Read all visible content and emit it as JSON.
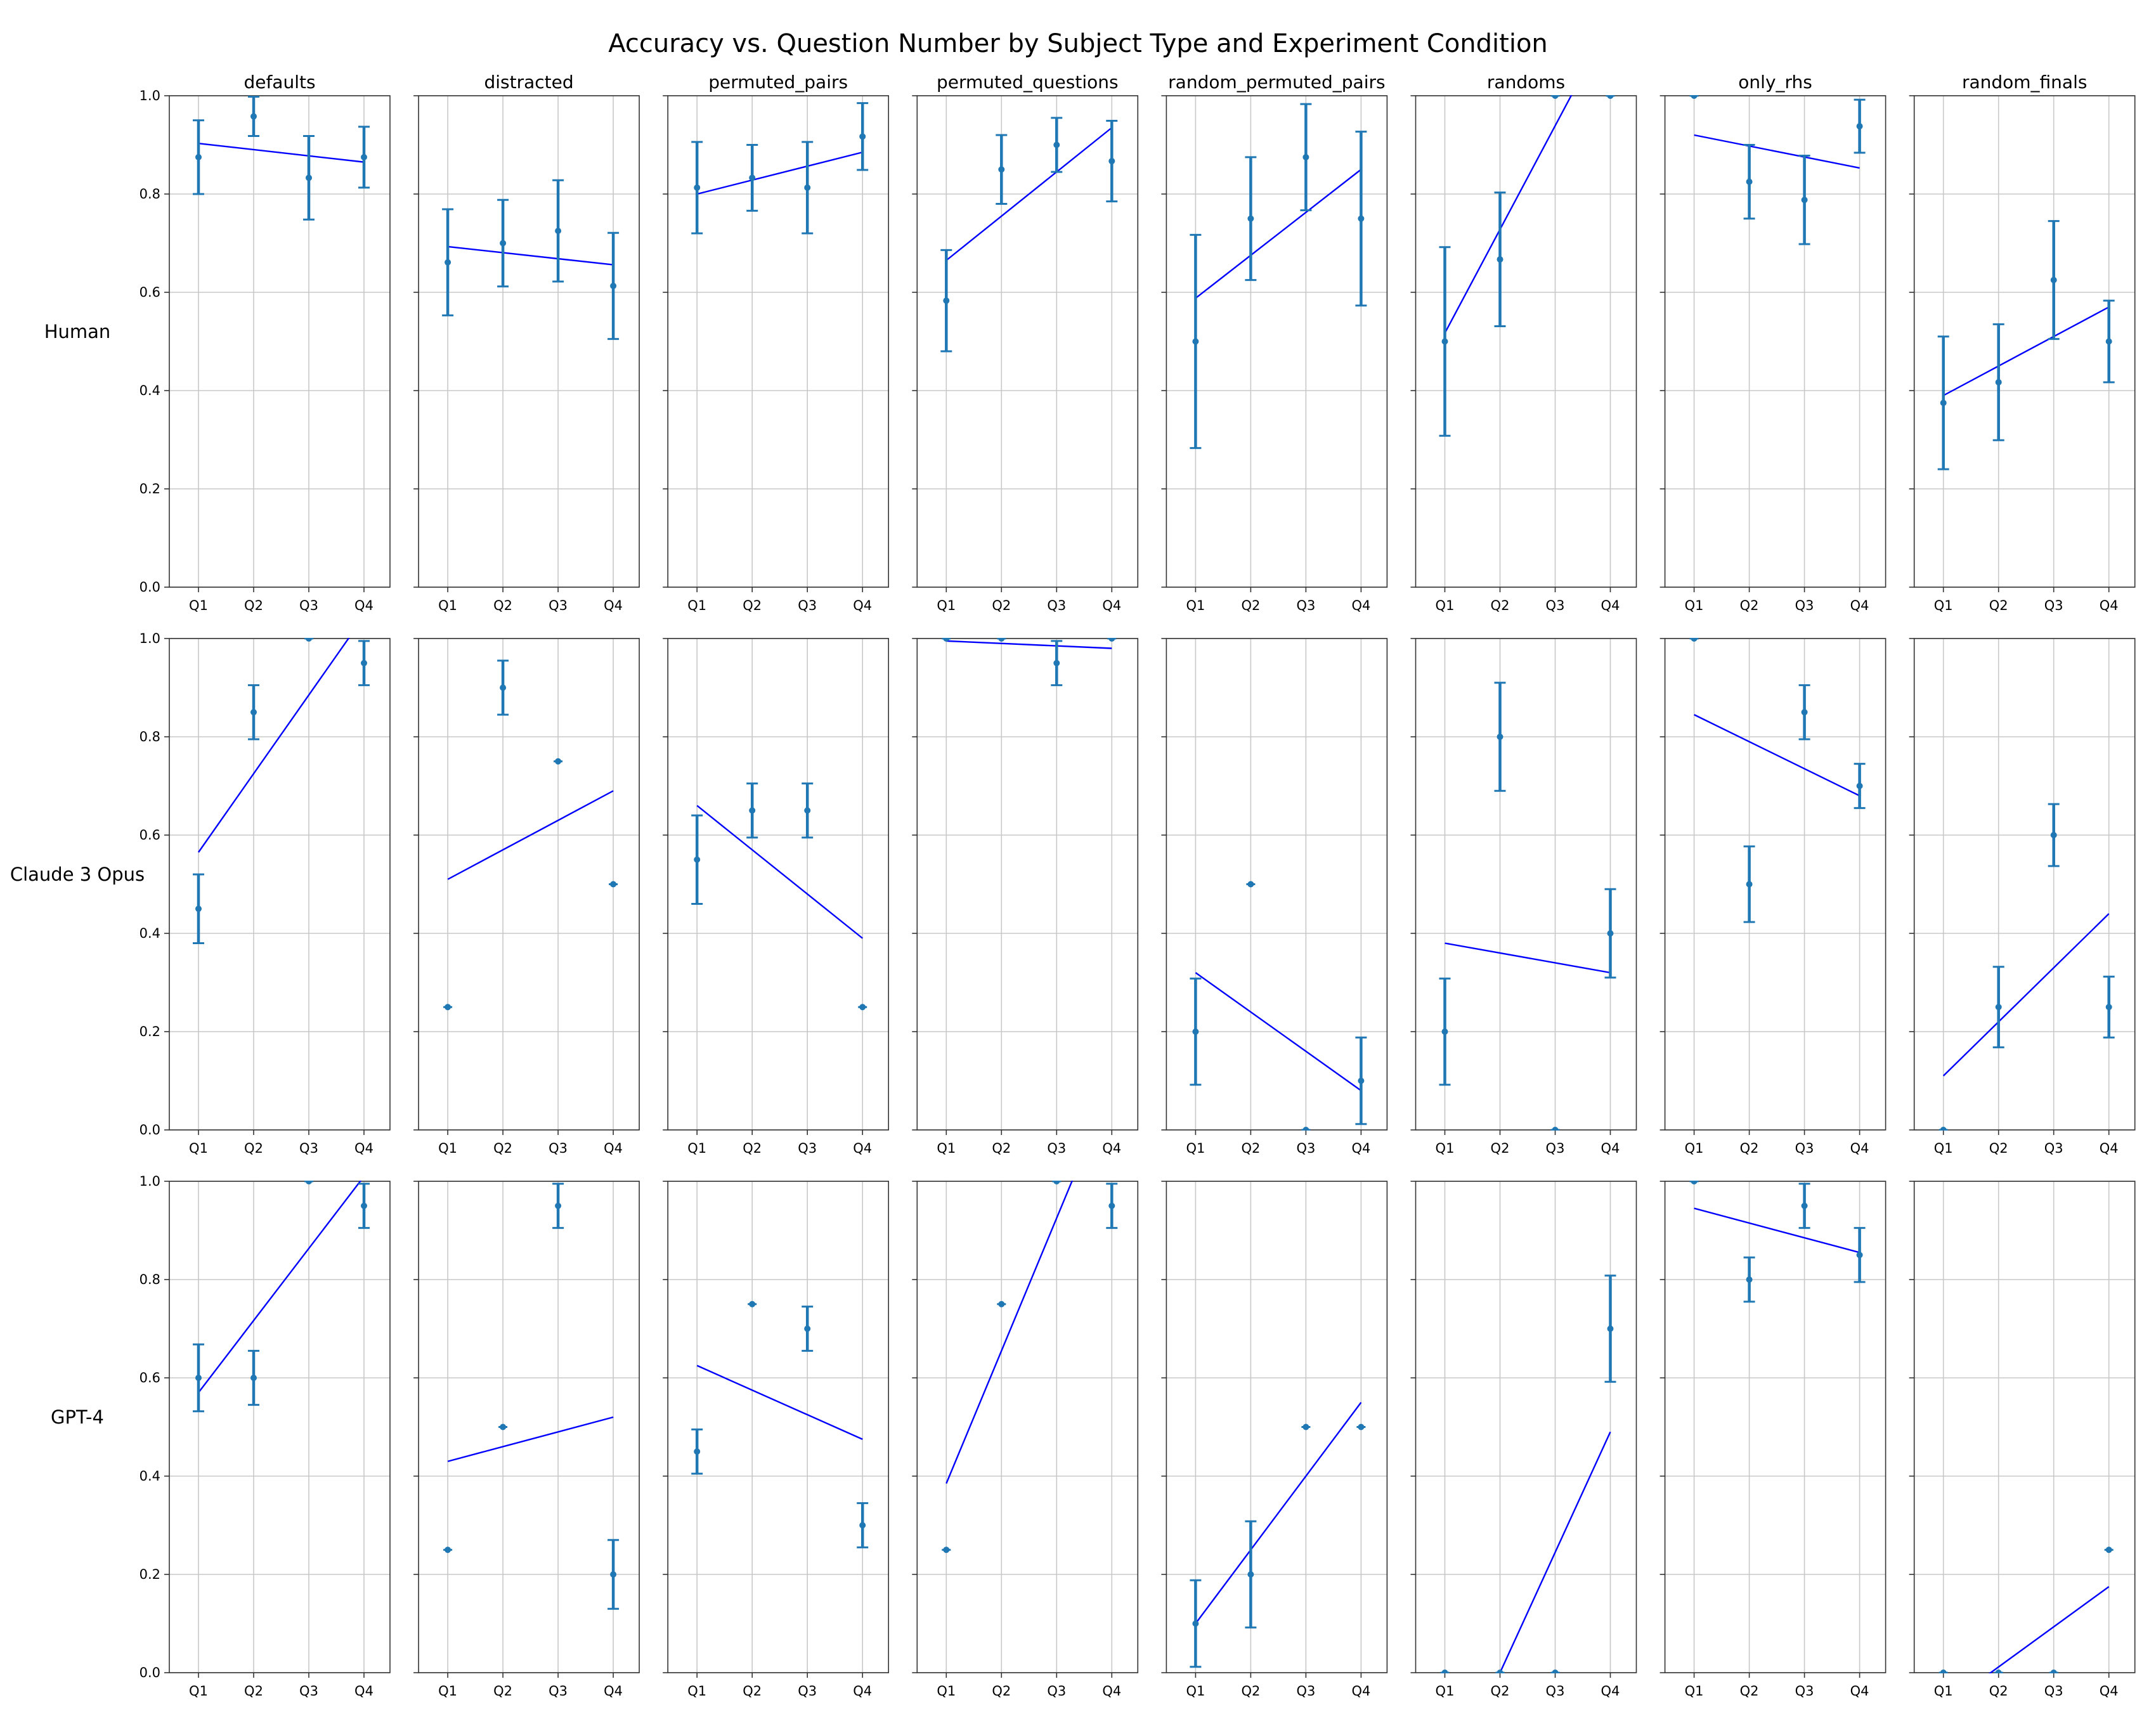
{
  "chart_data": {
    "type": "scatter",
    "title": "Accuracy vs. Question Number by Subject Type and Experiment Condition",
    "conditions": [
      "defaults",
      "distracted",
      "permuted_pairs",
      "permuted_questions",
      "random_permuted_pairs",
      "randoms",
      "only_rhs",
      "random_finals"
    ],
    "subjects": [
      "Human",
      "Claude 3 Opus",
      "GPT-4"
    ],
    "categories": [
      "Q1",
      "Q2",
      "Q3",
      "Q4"
    ],
    "ylim": [
      0,
      1
    ],
    "yticks": [
      "0.0",
      "0.2",
      "0.4",
      "0.6",
      "0.8",
      "1.0"
    ],
    "grid": true,
    "trend_color": "#0000ff",
    "point_color": "#1f77b4",
    "panels": [
      [
        {
          "values": [
            0.875,
            0.958,
            0.833,
            0.875
          ],
          "err": [
            0.075,
            0.04,
            0.085,
            0.062
          ],
          "trend": [
            0.903,
            0.865
          ]
        },
        {
          "values": [
            0.661,
            0.7,
            0.725,
            0.613
          ],
          "err": [
            0.108,
            0.088,
            0.103,
            0.108
          ],
          "trend": [
            0.693,
            0.656
          ]
        },
        {
          "values": [
            0.813,
            0.833,
            0.813,
            0.917
          ],
          "err": [
            0.093,
            0.067,
            0.093,
            0.068
          ],
          "trend": [
            0.8,
            0.885
          ]
        },
        {
          "values": [
            0.583,
            0.85,
            0.9,
            0.867
          ],
          "err": [
            0.103,
            0.07,
            0.055,
            0.082
          ],
          "trend": [
            0.665,
            0.935
          ]
        },
        {
          "values": [
            0.5,
            0.75,
            0.875,
            0.75
          ],
          "err": [
            0.217,
            0.125,
            0.108,
            0.177
          ],
          "trend": [
            0.588,
            0.85
          ]
        },
        {
          "values": [
            0.5,
            0.667,
            1.0,
            1.0
          ],
          "err": [
            0.192,
            0.136,
            0.0,
            0.0
          ],
          "trend": [
            0.517,
            1.15
          ]
        },
        {
          "values": [
            1.0,
            0.825,
            0.788,
            0.938
          ],
          "err": [
            0.0,
            0.075,
            0.09,
            0.054
          ],
          "trend": [
            0.92,
            0.853
          ]
        },
        {
          "values": [
            0.375,
            0.417,
            0.625,
            0.5
          ],
          "err": [
            0.135,
            0.118,
            0.12,
            0.083
          ],
          "trend": [
            0.39,
            0.57
          ]
        }
      ],
      [
        {
          "values": [
            0.45,
            0.85,
            1.0,
            0.95
          ],
          "err": [
            0.07,
            0.055,
            0.0,
            0.045
          ],
          "trend": [
            0.565,
            1.045
          ]
        },
        {
          "values": [
            0.25,
            0.9,
            0.75,
            0.5
          ],
          "err": [
            0.0,
            0.055,
            0.0,
            0.0
          ],
          "trend": [
            0.51,
            0.69
          ]
        },
        {
          "values": [
            0.55,
            0.65,
            0.65,
            0.25
          ],
          "err": [
            0.09,
            0.055,
            0.055,
            0.0
          ],
          "trend": [
            0.66,
            0.39
          ]
        },
        {
          "values": [
            1.0,
            1.0,
            0.95,
            1.0
          ],
          "err": [
            0.0,
            0.0,
            0.045,
            0.0
          ],
          "trend": [
            0.995,
            0.98
          ]
        },
        {
          "values": [
            0.2,
            0.5,
            0.0,
            0.1
          ],
          "err": [
            0.108,
            0.0,
            0.0,
            0.088
          ],
          "trend": [
            0.32,
            0.08
          ]
        },
        {
          "values": [
            0.2,
            0.8,
            0.0,
            0.4
          ],
          "err": [
            0.108,
            0.11,
            0.0,
            0.09
          ],
          "trend": [
            0.38,
            0.32
          ]
        },
        {
          "values": [
            1.0,
            0.5,
            0.85,
            0.7
          ],
          "err": [
            0.0,
            0.077,
            0.055,
            0.045
          ],
          "trend": [
            0.845,
            0.68
          ]
        },
        {
          "values": [
            0.0,
            0.25,
            0.6,
            0.25
          ],
          "err": [
            0.0,
            0.082,
            0.063,
            0.062
          ],
          "trend": [
            0.11,
            0.44
          ]
        }
      ],
      [
        {
          "values": [
            0.6,
            0.6,
            1.0,
            0.95
          ],
          "err": [
            0.068,
            0.055,
            0.0,
            0.045
          ],
          "trend": [
            0.57,
            1.01
          ]
        },
        {
          "values": [
            0.25,
            0.5,
            0.95,
            0.2
          ],
          "err": [
            0.0,
            0.0,
            0.045,
            0.07
          ],
          "trend": [
            0.43,
            0.52
          ]
        },
        {
          "values": [
            0.45,
            0.75,
            0.7,
            0.3
          ],
          "err": [
            0.045,
            0.0,
            0.045,
            0.045
          ],
          "trend": [
            0.625,
            0.475
          ]
        },
        {
          "values": [
            0.25,
            0.75,
            1.0,
            0.95
          ],
          "err": [
            0.0,
            0.0,
            0.0,
            0.045
          ],
          "trend": [
            0.385,
            1.195
          ]
        },
        {
          "values": [
            0.1,
            0.2,
            0.5,
            0.5
          ],
          "err": [
            0.088,
            0.108,
            0.0,
            0.0
          ],
          "trend": [
            0.1,
            0.55
          ]
        },
        {
          "values": [
            0.0,
            0.0,
            0.0,
            0.7
          ],
          "err": [
            0.0,
            0.0,
            0.0,
            0.108
          ],
          "trend": [
            -0.245,
            0.49
          ]
        },
        {
          "values": [
            1.0,
            0.8,
            0.95,
            0.85
          ],
          "err": [
            0.0,
            0.045,
            0.045,
            0.055
          ],
          "trend": [
            0.945,
            0.855
          ]
        },
        {
          "values": [
            0.0,
            0.0,
            0.0,
            0.25
          ],
          "err": [
            0.0,
            0.0,
            0.0,
            0.0
          ],
          "trend": [
            -0.07,
            0.175
          ]
        }
      ]
    ]
  }
}
